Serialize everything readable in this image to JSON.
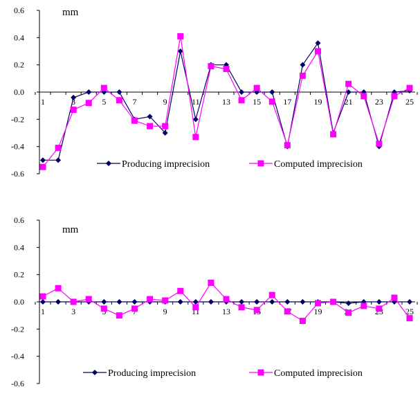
{
  "chart_data": [
    {
      "type": "line",
      "unit_label": "mm",
      "ylim": [
        -0.6,
        0.6
      ],
      "y_ticks": [
        "0.6",
        "0.4",
        "0.2",
        "0.0",
        "-0.2",
        "-0.4",
        "-0.6"
      ],
      "x": [
        1,
        2,
        3,
        4,
        5,
        6,
        7,
        8,
        9,
        10,
        11,
        12,
        13,
        14,
        15,
        16,
        17,
        18,
        19,
        20,
        21,
        22,
        23,
        24,
        25
      ],
      "x_tick_labels": [
        "1",
        "3",
        "5",
        "7",
        "9",
        "11",
        "13",
        "15",
        "17",
        "19",
        "21",
        "23",
        "25"
      ],
      "legend_position": "bottom",
      "series": [
        {
          "name": "Producing imprecision",
          "color": "#000066",
          "marker": "diamond",
          "values": [
            -0.5,
            -0.5,
            -0.04,
            0.0,
            0.0,
            0.0,
            -0.2,
            -0.18,
            -0.3,
            0.3,
            -0.2,
            0.2,
            0.2,
            0.0,
            0.0,
            0.0,
            -0.4,
            0.2,
            0.36,
            -0.3,
            0.0,
            0.0,
            -0.4,
            0.0,
            0.01
          ]
        },
        {
          "name": "Computed imprecision",
          "color": "#ff00ff",
          "marker": "square",
          "values": [
            -0.55,
            -0.41,
            -0.13,
            -0.08,
            0.03,
            -0.06,
            -0.21,
            -0.25,
            -0.25,
            0.41,
            -0.33,
            0.19,
            0.17,
            -0.06,
            0.03,
            -0.07,
            -0.39,
            0.12,
            0.3,
            -0.31,
            0.06,
            -0.03,
            -0.38,
            -0.03,
            0.03
          ]
        }
      ]
    },
    {
      "type": "line",
      "unit_label": "mm",
      "ylim": [
        -0.6,
        0.6
      ],
      "y_ticks": [
        "0.6",
        "0.4",
        "0.2",
        "0.0",
        "-0.2",
        "-0.4",
        "-0.6"
      ],
      "x": [
        1,
        2,
        3,
        4,
        5,
        6,
        7,
        8,
        9,
        10,
        11,
        12,
        13,
        14,
        15,
        16,
        17,
        18,
        19,
        20,
        21,
        22,
        23,
        24,
        25
      ],
      "x_tick_labels": [
        "1",
        "3",
        "5",
        "7",
        "9",
        "11",
        "13",
        "15",
        "17",
        "19",
        "21",
        "23",
        "25"
      ],
      "legend_position": "bottom",
      "series": [
        {
          "name": "Producing imprecision",
          "color": "#000066",
          "marker": "diamond",
          "values": [
            0.0,
            0.0,
            0.0,
            0.0,
            0.0,
            0.0,
            0.0,
            0.0,
            0.0,
            0.0,
            0.0,
            0.0,
            0.0,
            0.0,
            0.0,
            0.0,
            0.0,
            0.0,
            0.0,
            0.0,
            -0.01,
            0.0,
            0.0,
            0.0,
            0.0
          ]
        },
        {
          "name": "Computed imprecision",
          "color": "#ff00ff",
          "marker": "square",
          "values": [
            0.04,
            0.1,
            0.0,
            0.02,
            -0.05,
            -0.1,
            -0.05,
            0.02,
            0.01,
            0.08,
            -0.04,
            0.14,
            0.02,
            -0.04,
            -0.06,
            0.05,
            -0.07,
            -0.14,
            -0.01,
            0.0,
            -0.08,
            -0.03,
            -0.05,
            0.03,
            -0.12
          ]
        }
      ]
    }
  ]
}
